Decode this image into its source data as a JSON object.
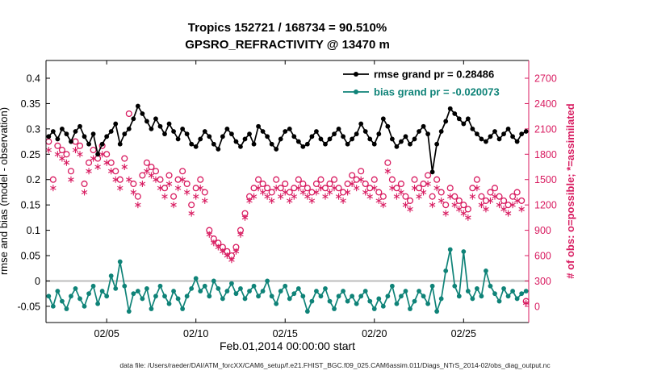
{
  "caption": "data file: /Users/raeder/DAI/ATM_forcXX/CAM6_setup/f.e21.FHIST_BGC.f09_025.CAM6assim.011/Diags_NTrS_2014-02/obs_diag_output.nc",
  "colors": {
    "rmse": "#000000",
    "bias": "#0f8378",
    "obs": "#d81b60",
    "zero_line": "#bcbcbc",
    "axis": "#000000"
  },
  "chart_data": {
    "type": "line",
    "title1": "Tropics 152721 / 168734 = 90.510%",
    "title2": "GPSRO_REFRACTIVITY @ 13470 m",
    "x_label": "Feb.01,2014 00:00:00 start",
    "x_lim": [
      1.6,
      28.65
    ],
    "x_ticks": {
      "values": [
        5,
        10,
        15,
        20,
        25
      ],
      "labels": [
        "02/05",
        "02/10",
        "02/15",
        "02/20",
        "02/25"
      ]
    },
    "left_y": {
      "label": "rmse and bias (model - observation)",
      "lim": [
        -0.082,
        0.435
      ],
      "ticks": [
        -0.05,
        0,
        0.05,
        0.1,
        0.15,
        0.2,
        0.25,
        0.3,
        0.35,
        0.4
      ],
      "tick_labels": [
        "-0.05",
        "0",
        "0.05",
        "0.1",
        "0.15",
        "0.2",
        "0.25",
        "0.3",
        "0.35",
        "0.4"
      ]
    },
    "right_y": {
      "label": "# of obs: o=possible; *=assimilated",
      "lim": [
        -192,
        2910
      ],
      "ticks": [
        0,
        300,
        600,
        900,
        1200,
        1500,
        1800,
        2100,
        2400,
        2700
      ],
      "tick_labels": [
        "0",
        "300",
        "600",
        "900",
        "1200",
        "1500",
        "1800",
        "2100",
        "2400",
        "2700"
      ]
    },
    "grid": {
      "zero_line": true,
      "legend_position": "top-right-inside"
    },
    "x": [
      1.75,
      2,
      2.25,
      2.5,
      2.75,
      3,
      3.25,
      3.5,
      3.75,
      4,
      4.25,
      4.5,
      4.75,
      5,
      5.25,
      5.5,
      5.75,
      6,
      6.25,
      6.5,
      6.75,
      7,
      7.25,
      7.5,
      7.75,
      8,
      8.25,
      8.5,
      8.75,
      9,
      9.25,
      9.5,
      9.75,
      10,
      10.25,
      10.5,
      10.75,
      11,
      11.25,
      11.5,
      11.75,
      12,
      12.25,
      12.5,
      12.75,
      13,
      13.25,
      13.5,
      13.75,
      14,
      14.25,
      14.5,
      14.75,
      15,
      15.25,
      15.5,
      15.75,
      16,
      16.25,
      16.5,
      16.75,
      17,
      17.25,
      17.5,
      17.75,
      18,
      18.25,
      18.5,
      18.75,
      19,
      19.25,
      19.5,
      19.75,
      20,
      20.25,
      20.5,
      20.75,
      21,
      21.25,
      21.5,
      21.75,
      22,
      22.25,
      22.5,
      22.75,
      23,
      23.25,
      23.5,
      23.75,
      24,
      24.25,
      24.5,
      24.75,
      25,
      25.25,
      25.5,
      25.75,
      26,
      26.25,
      26.5,
      26.75,
      27,
      27.25,
      27.5,
      27.75,
      28,
      28.25,
      28.5
    ],
    "series": [
      {
        "name": "rmse",
        "legend_label": "rmse grand pr = 0.28486",
        "grand_value": 0.28486,
        "axis": "left",
        "color_key": "rmse",
        "marker": "filled-dot",
        "line": true,
        "values": [
          0.285,
          0.295,
          0.28,
          0.3,
          0.29,
          0.275,
          0.295,
          0.305,
          0.285,
          0.27,
          0.29,
          0.25,
          0.27,
          0.285,
          0.295,
          0.31,
          0.27,
          0.29,
          0.3,
          0.32,
          0.345,
          0.33,
          0.315,
          0.3,
          0.32,
          0.305,
          0.29,
          0.31,
          0.295,
          0.28,
          0.3,
          0.29,
          0.27,
          0.265,
          0.28,
          0.295,
          0.285,
          0.27,
          0.26,
          0.285,
          0.3,
          0.29,
          0.275,
          0.265,
          0.28,
          0.29,
          0.27,
          0.305,
          0.295,
          0.285,
          0.27,
          0.26,
          0.28,
          0.295,
          0.3,
          0.285,
          0.275,
          0.265,
          0.27,
          0.285,
          0.295,
          0.28,
          0.27,
          0.28,
          0.29,
          0.3,
          0.285,
          0.27,
          0.28,
          0.29,
          0.31,
          0.295,
          0.28,
          0.27,
          0.29,
          0.32,
          0.305,
          0.28,
          0.265,
          0.275,
          0.285,
          0.27,
          0.28,
          0.295,
          0.305,
          0.29,
          0.215,
          0.27,
          0.295,
          0.315,
          0.34,
          0.33,
          0.32,
          0.31,
          0.32,
          0.3,
          0.29,
          0.28,
          0.275,
          0.285,
          0.295,
          0.28,
          0.29,
          0.3,
          0.285,
          0.275,
          0.29,
          0.295
        ]
      },
      {
        "name": "bias",
        "legend_label": "bias grand pr = -0.020073",
        "grand_value": -0.020073,
        "axis": "left",
        "color_key": "bias",
        "marker": "filled-dot",
        "line": true,
        "values": [
          -0.03,
          -0.05,
          -0.02,
          -0.04,
          -0.055,
          -0.03,
          -0.015,
          -0.035,
          -0.05,
          -0.025,
          -0.01,
          -0.045,
          -0.02,
          -0.03,
          0.01,
          -0.015,
          0.038,
          -0.01,
          -0.06,
          -0.025,
          -0.02,
          -0.035,
          -0.015,
          -0.055,
          -0.03,
          -0.01,
          -0.03,
          -0.045,
          -0.02,
          -0.035,
          -0.055,
          -0.03,
          -0.015,
          0.005,
          -0.02,
          -0.01,
          -0.03,
          0,
          -0.015,
          -0.035,
          -0.02,
          -0.005,
          -0.025,
          -0.015,
          -0.035,
          -0.02,
          -0.01,
          -0.03,
          -0.02,
          0,
          -0.03,
          -0.045,
          -0.02,
          -0.01,
          -0.035,
          -0.025,
          -0.015,
          -0.03,
          -0.06,
          -0.04,
          -0.02,
          -0.03,
          -0.015,
          -0.04,
          -0.055,
          -0.03,
          -0.02,
          -0.04,
          -0.03,
          -0.045,
          -0.03,
          -0.02,
          -0.04,
          -0.055,
          -0.035,
          -0.05,
          -0.03,
          -0.01,
          -0.045,
          -0.03,
          -0.02,
          -0.055,
          -0.04,
          -0.02,
          -0.03,
          -0.045,
          -0.01,
          -0.06,
          -0.035,
          0.02,
          0.062,
          -0.01,
          -0.03,
          0.058,
          -0.02,
          -0.035,
          -0.015,
          -0.03,
          0.02,
          -0.01,
          -0.025,
          -0.04,
          -0.015,
          -0.03,
          -0.02,
          -0.035,
          -0.025,
          -0.02
        ]
      },
      {
        "name": "possible",
        "axis": "right",
        "color_key": "obs",
        "marker": "open-circle",
        "line": false,
        "values": [
          1950,
          1500,
          1900,
          1850,
          1800,
          1600,
          1950,
          1900,
          1450,
          1700,
          1850,
          1750,
          1900,
          1800,
          1700,
          1600,
          1500,
          1750,
          2280,
          1450,
          1300,
          1550,
          1700,
          1650,
          1600,
          1500,
          1400,
          1550,
          1300,
          1500,
          1600,
          1450,
          1200,
          1400,
          1500,
          1350,
          900,
          800,
          750,
          700,
          650,
          600,
          700,
          900,
          1100,
          1300,
          1400,
          1500,
          1450,
          1400,
          1350,
          1500,
          1400,
          1450,
          1350,
          1400,
          1500,
          1450,
          1400,
          1350,
          1450,
          1500,
          1400,
          1450,
          1500,
          1400,
          1350,
          1450,
          1550,
          1500,
          1600,
          1450,
          1400,
          1500,
          1350,
          1300,
          1700,
          1500,
          1400,
          1450,
          1300,
          1250,
          1500,
          1400,
          1450,
          1550,
          1300,
          1500,
          1350,
          1200,
          1400,
          1300,
          1250,
          1200,
          1150,
          1400,
          1500,
          1300,
          1250,
          1350,
          1400,
          1300,
          1250,
          1200,
          1300,
          1350,
          1250,
          60
        ]
      },
      {
        "name": "assimilated",
        "axis": "right",
        "color_key": "obs",
        "marker": "asterisk",
        "line": false,
        "values": [
          1850,
          1400,
          1800,
          1750,
          1700,
          1500,
          1850,
          1800,
          1350,
          1600,
          1750,
          1650,
          1800,
          1700,
          1600,
          1500,
          1400,
          1650,
          1500,
          1350,
          1200,
          1450,
          1600,
          1550,
          1500,
          1400,
          1300,
          1450,
          1200,
          1400,
          1500,
          1350,
          1100,
          1300,
          1400,
          1250,
          850,
          750,
          700,
          650,
          600,
          550,
          650,
          850,
          1050,
          1250,
          1300,
          1400,
          1350,
          1300,
          1250,
          1400,
          1300,
          1350,
          1250,
          1300,
          1400,
          1350,
          1300,
          1250,
          1350,
          1400,
          1300,
          1350,
          1400,
          1300,
          1250,
          1350,
          1450,
          1400,
          1500,
          1350,
          1300,
          1400,
          1250,
          1200,
          1600,
          1400,
          1300,
          1350,
          1200,
          1150,
          1400,
          1300,
          1350,
          1450,
          1200,
          1400,
          1250,
          1100,
          1300,
          1200,
          1150,
          1100,
          1050,
          1300,
          1400,
          1200,
          1150,
          1250,
          1300,
          1200,
          1150,
          1100,
          1200,
          1250,
          1150,
          40
        ]
      }
    ]
  }
}
